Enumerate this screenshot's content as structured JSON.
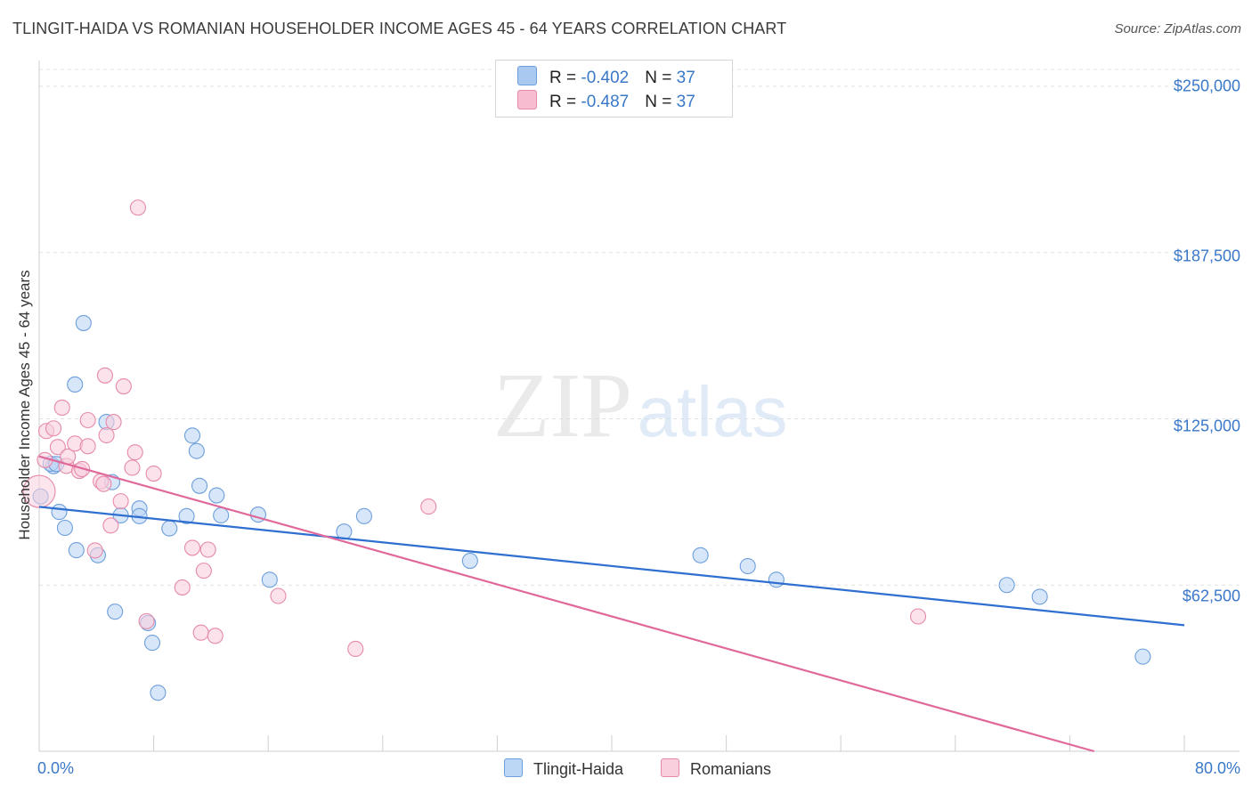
{
  "title": "TLINGIT-HAIDA VS ROMANIAN HOUSEHOLDER INCOME AGES 45 - 64 YEARS CORRELATION CHART",
  "source": "Source: ZipAtlas.com",
  "watermark": {
    "zip": "ZIP",
    "atlas": "atlas"
  },
  "legend_top": [
    {
      "r_label": "R = ",
      "r_value": "-0.402",
      "n_label": "N = ",
      "n_value": "37",
      "color": "#a9c9f0",
      "border": "#6d9fdc"
    },
    {
      "r_label": "R = ",
      "r_value": "-0.487",
      "n_label": "N = ",
      "n_value": "37",
      "color": "#f7bcd0",
      "border": "#e68aa9"
    }
  ],
  "legend_bottom": [
    {
      "label": "Tlingit-Haida",
      "color": "#bcd6f5",
      "border": "#6d9fdc"
    },
    {
      "label": "Romanians",
      "color": "#f9cfdd",
      "border": "#e68aa9"
    }
  ],
  "chart_data": {
    "type": "scatter",
    "title": "TLINGIT-HAIDA VS ROMANIAN HOUSEHOLDER INCOME AGES 45 - 64 YEARS CORRELATION CHART",
    "xlabel": "",
    "ylabel": "Householder Income Ages 45 - 64 years",
    "xlim": [
      0,
      80
    ],
    "ylim": [
      0,
      250000
    ],
    "y_ticks": [
      62500,
      125000,
      187500,
      250000
    ],
    "y_tick_labels": [
      "$62,500",
      "$125,000",
      "$187,500",
      "$250,000"
    ],
    "x_tick_labels": [
      "0.0%",
      "80.0%"
    ],
    "series": [
      {
        "name": "Tlingit-Haida",
        "color": "#6d9fdc",
        "fill": "#bcd6f5",
        "line_color": "#2f6fd0",
        "trend": {
          "x0": 0,
          "y0": 91900,
          "x1": 80,
          "y1": 47400
        },
        "points": [
          [
            0.1,
            95800
          ],
          [
            1.0,
            107200
          ],
          [
            1.4,
            90000
          ],
          [
            1.8,
            84000
          ],
          [
            2.5,
            137900
          ],
          [
            2.6,
            75600
          ],
          [
            3.1,
            161000
          ],
          [
            4.1,
            73700
          ],
          [
            4.7,
            123800
          ],
          [
            5.1,
            101200
          ],
          [
            5.3,
            52500
          ],
          [
            5.7,
            88700
          ],
          [
            7.0,
            91300
          ],
          [
            7.0,
            88400
          ],
          [
            7.6,
            48200
          ],
          [
            7.9,
            40800
          ],
          [
            8.3,
            22000
          ],
          [
            9.1,
            83800
          ],
          [
            10.3,
            88400
          ],
          [
            10.7,
            118700
          ],
          [
            11.0,
            112900
          ],
          [
            11.2,
            99800
          ],
          [
            12.4,
            96200
          ],
          [
            12.7,
            88700
          ],
          [
            15.3,
            89000
          ],
          [
            16.1,
            64500
          ],
          [
            21.3,
            82600
          ],
          [
            22.7,
            88400
          ],
          [
            30.1,
            71600
          ],
          [
            46.2,
            73700
          ],
          [
            49.5,
            69600
          ],
          [
            51.5,
            64500
          ],
          [
            67.6,
            62500
          ],
          [
            69.9,
            58100
          ],
          [
            77.1,
            35600
          ],
          [
            0.8,
            108100
          ],
          [
            1.2,
            108000
          ]
        ]
      },
      {
        "name": "Romanians",
        "color": "#e68aa9",
        "fill": "#f9cfdd",
        "line_color": "#e0689a",
        "trend": {
          "x0": 0,
          "y0": 110900,
          "x1": 73.7,
          "y1": 0
        },
        "points": [
          [
            0.0,
            97700
          ],
          [
            0.4,
            109500
          ],
          [
            0.5,
            120400
          ],
          [
            1.0,
            121400
          ],
          [
            1.3,
            114400
          ],
          [
            1.6,
            129200
          ],
          [
            1.9,
            107300
          ],
          [
            2.0,
            110800
          ],
          [
            2.5,
            115700
          ],
          [
            2.8,
            105400
          ],
          [
            3.0,
            106100
          ],
          [
            3.4,
            124500
          ],
          [
            3.4,
            114700
          ],
          [
            3.9,
            75500
          ],
          [
            4.3,
            101500
          ],
          [
            4.5,
            100500
          ],
          [
            4.6,
            141300
          ],
          [
            4.7,
            118800
          ],
          [
            5.0,
            84900
          ],
          [
            5.2,
            123800
          ],
          [
            5.7,
            94000
          ],
          [
            5.9,
            137200
          ],
          [
            6.5,
            106600
          ],
          [
            6.7,
            112400
          ],
          [
            6.9,
            204400
          ],
          [
            7.5,
            48900
          ],
          [
            8.0,
            104400
          ],
          [
            10.0,
            61600
          ],
          [
            10.7,
            76500
          ],
          [
            11.3,
            44600
          ],
          [
            11.5,
            67900
          ],
          [
            11.8,
            75800
          ],
          [
            12.3,
            43400
          ],
          [
            16.7,
            58400
          ],
          [
            22.1,
            38500
          ],
          [
            27.2,
            92000
          ],
          [
            61.4,
            50700
          ]
        ]
      }
    ]
  }
}
